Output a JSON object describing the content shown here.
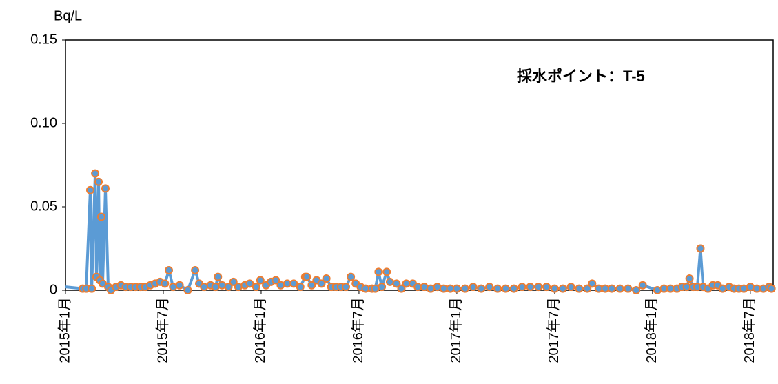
{
  "chart_data": {
    "type": "line",
    "title": "採水ポイント：T-5",
    "y_label": "Bq/L",
    "x": [
      0,
      1.06,
      1.27,
      1.52,
      1.61,
      1.82,
      1.9,
      2.03,
      2.11,
      2.2,
      2.28,
      2.45,
      2.62,
      2.79,
      3.1,
      3.4,
      3.7,
      4.0,
      4.3,
      4.6,
      4.9,
      5.2,
      5.5,
      5.8,
      6.1,
      6.34,
      6.6,
      7.0,
      7.5,
      7.95,
      8.2,
      8.5,
      8.9,
      9.2,
      9.35,
      9.6,
      10.0,
      10.3,
      10.6,
      11.0,
      11.3,
      11.7,
      11.95,
      12.3,
      12.6,
      12.9,
      13.2,
      13.6,
      14.0,
      14.4,
      14.7,
      14.8,
      15.1,
      15.4,
      15.7,
      16.0,
      16.3,
      16.6,
      16.9,
      17.2,
      17.5,
      17.8,
      18.1,
      18.4,
      18.8,
      19.0,
      19.2,
      19.4,
      19.7,
      19.9,
      20.3,
      20.6,
      20.9,
      21.3,
      21.6,
      22.0,
      22.4,
      22.8,
      23.2,
      23.6,
      24.0,
      24.5,
      25.0,
      25.5,
      26.0,
      26.5,
      27.0,
      27.5,
      28.0,
      28.5,
      29.0,
      29.5,
      30.0,
      30.5,
      31.0,
      31.5,
      32.0,
      32.3,
      32.7,
      33.1,
      33.5,
      34.0,
      34.5,
      35.0,
      35.4,
      36.3,
      36.7,
      37.1,
      37.5,
      37.8,
      38.1,
      38.27,
      38.5,
      38.75,
      38.94,
      39.1,
      39.4,
      39.7,
      40.0,
      40.3,
      40.7,
      41.0,
      41.3,
      41.6,
      42.0,
      42.4,
      42.8,
      43.15,
      43.3
    ],
    "series": [
      {
        "name": "T-5",
        "color": "#5b9bd5",
        "marker_edge": "#ed7d31",
        "values": [
          0.002,
          0.001,
          0.001,
          0.06,
          0.001,
          0.07,
          0.008,
          0.065,
          0.006,
          0.044,
          0.004,
          0.061,
          0.002,
          0,
          0.002,
          0.003,
          0.002,
          0.002,
          0.002,
          0.002,
          0.002,
          0.003,
          0.004,
          0.005,
          0.004,
          0.012,
          0.002,
          0.003,
          0,
          0.012,
          0.004,
          0.002,
          0.003,
          0.002,
          0.008,
          0.003,
          0.002,
          0.005,
          0.002,
          0.003,
          0.004,
          0.002,
          0.006,
          0.003,
          0.005,
          0.006,
          0.003,
          0.004,
          0.004,
          0.002,
          0.008,
          0.008,
          0.003,
          0.006,
          0.004,
          0.007,
          0.002,
          0.002,
          0.002,
          0.002,
          0.008,
          0.004,
          0.002,
          0.001,
          0.001,
          0.001,
          0.011,
          0.002,
          0.011,
          0.005,
          0.004,
          0.001,
          0.004,
          0.004,
          0.002,
          0.002,
          0.001,
          0.002,
          0.001,
          0.001,
          0.001,
          0.001,
          0.002,
          0.001,
          0.002,
          0.001,
          0.001,
          0.001,
          0.002,
          0.002,
          0.002,
          0.002,
          0.001,
          0.001,
          0.002,
          0.001,
          0.001,
          0.004,
          0.001,
          0.001,
          0.001,
          0.001,
          0.001,
          0,
          0.003,
          0,
          0.001,
          0.001,
          0.001,
          0.002,
          0.002,
          0.007,
          0.002,
          0.002,
          0.025,
          0.002,
          0.001,
          0.003,
          0.003,
          0.001,
          0.002,
          0.001,
          0.001,
          0.001,
          0.002,
          0.001,
          0.001,
          0.002,
          0.001
        ]
      }
    ],
    "xlim": [
      0,
      43.4
    ],
    "xticks": [
      {
        "value": 0,
        "label": "2015年1月"
      },
      {
        "value": 6,
        "label": "2015年7月"
      },
      {
        "value": 12,
        "label": "2016年1月"
      },
      {
        "value": 18,
        "label": "2016年7月"
      },
      {
        "value": 24,
        "label": "2017年1月"
      },
      {
        "value": 30,
        "label": "2017年7月"
      },
      {
        "value": 36,
        "label": "2018年1月"
      },
      {
        "value": 42,
        "label": "2018年7月"
      }
    ],
    "ylim": [
      0,
      0.15
    ],
    "yticks": [
      0,
      0.05,
      {
        "value": 0.1,
        "label": "0.10"
      },
      0.15
    ]
  }
}
